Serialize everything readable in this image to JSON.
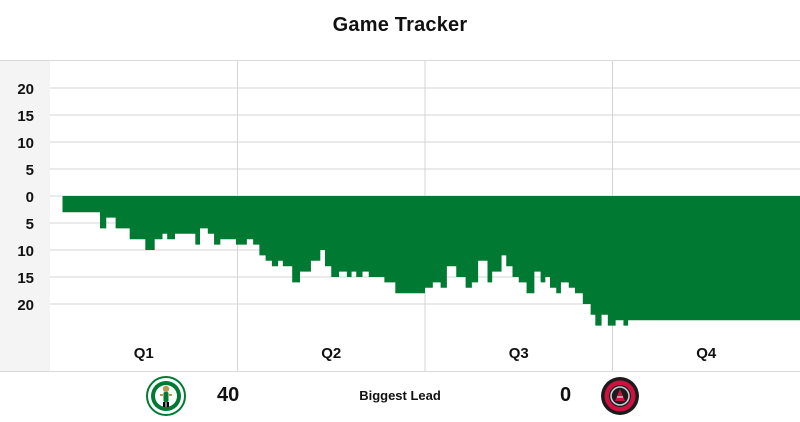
{
  "title": "Game Tracker",
  "chart_data": {
    "type": "area",
    "title": "Game Tracker",
    "xlabel": "",
    "ylabel": "",
    "categories": [
      "Q1",
      "Q2",
      "Q3",
      "Q4"
    ],
    "y_tick_labels": [
      "20",
      "15",
      "10",
      "5",
      "0",
      "5",
      "10",
      "15",
      "20"
    ],
    "y_tick_values": [
      20,
      15,
      10,
      5,
      0,
      -5,
      -10,
      -15,
      -20
    ],
    "ylim": [
      -25,
      25
    ],
    "xlim": [
      0,
      48
    ],
    "grid": true,
    "series": [
      {
        "color": "#007a33",
        "x": [
          0.8,
          2.7,
          3.2,
          3.6,
          4.2,
          4.5,
          5.1,
          5.4,
          6.1,
          6.7,
          7.2,
          7.5,
          8.0,
          8.4,
          9.3,
          9.6,
          10.1,
          10.5,
          10.9,
          11.3,
          11.9,
          12.3,
          12.6,
          13.0,
          13.4,
          13.8,
          14.2,
          14.6,
          14.9,
          15.1,
          15.5,
          16.0,
          16.7,
          17.3,
          17.6,
          18.0,
          18.5,
          19.0,
          19.3,
          19.6,
          20.0,
          20.4,
          21.4,
          22.1,
          23.0,
          23.3,
          23.6,
          24.0,
          24.5,
          25.0,
          25.4,
          26.0,
          26.6,
          27.0,
          27.4,
          28.0,
          28.3,
          28.9,
          29.2,
          29.6,
          30.0,
          30.5,
          31.0,
          31.4,
          31.7,
          32.0,
          32.4,
          32.7,
          33.2,
          33.6,
          34.1,
          34.6,
          34.9,
          35.3,
          35.7,
          36.2,
          36.7,
          37.0,
          48.0
        ],
        "y": [
          -3,
          -3,
          -6,
          -4,
          -6,
          -6,
          -8,
          -8,
          -10,
          -8,
          -7,
          -8,
          -7,
          -7,
          -9,
          -6,
          -7,
          -9,
          -8,
          -8,
          -9,
          -9,
          -8,
          -9,
          -11,
          -12,
          -13,
          -12,
          -13,
          -13,
          -16,
          -14,
          -12,
          -10,
          -13,
          -15,
          -14,
          -15,
          -14,
          -15,
          -14,
          -15,
          -16,
          -18,
          -18,
          -18,
          -18,
          -17,
          -16,
          -17,
          -13,
          -15,
          -17,
          -16,
          -12,
          -16,
          -14,
          -11,
          -13,
          -15,
          -16,
          -18,
          -14,
          -16,
          -15,
          -17,
          -18,
          -16,
          -17,
          -18,
          -20,
          -22,
          -24,
          -22,
          -24,
          -23,
          -24,
          -23,
          -25
        ]
      }
    ]
  },
  "footer": {
    "home_score": "40",
    "away_score": "0",
    "lead_label": "Biggest Lead",
    "home_logo": "celtics-logo",
    "away_logo": "raptors-logo"
  }
}
